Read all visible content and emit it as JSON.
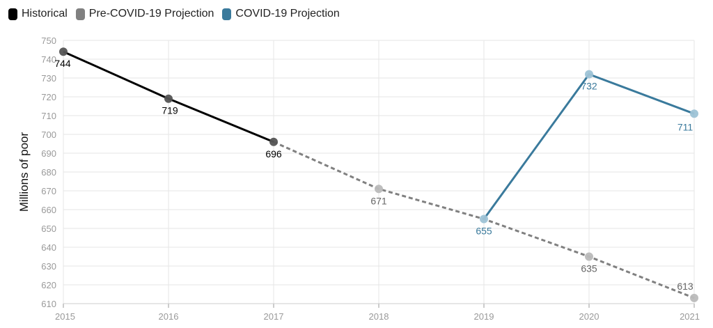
{
  "legend": [
    {
      "label": "Historical",
      "color": "#000000"
    },
    {
      "label": "Pre-COVID-19 Projection",
      "color": "#808080"
    },
    {
      "label": "COVID-19 Projection",
      "color": "#3a7a9c"
    }
  ],
  "chart_data": {
    "type": "line",
    "ylabel": "Millions of poor",
    "xlabel": "",
    "ylim": [
      610,
      750
    ],
    "y_ticks": [
      610,
      620,
      630,
      640,
      650,
      660,
      670,
      680,
      690,
      700,
      710,
      720,
      730,
      740,
      750
    ],
    "x_ticks": [
      2015,
      2016,
      2017,
      2018,
      2019,
      2020,
      2021
    ],
    "grid": true,
    "legend_position": "top-left",
    "series": [
      {
        "name": "Historical",
        "color": "#000000",
        "marker_color": "#555555",
        "dashed": false,
        "x": [
          2015,
          2016,
          2017
        ],
        "values": [
          744,
          719,
          696
        ],
        "label_color": "#000000"
      },
      {
        "name": "Pre-COVID-19 Projection",
        "color": "#808080",
        "marker_color": "#bbbbbb",
        "dashed": true,
        "x": [
          2017,
          2018,
          2019,
          2020,
          2021
        ],
        "values": [
          696,
          671,
          655,
          635,
          613
        ],
        "label_color": "#666666",
        "label_points": [
          2018,
          2020,
          2021
        ]
      },
      {
        "name": "COVID-19 Projection",
        "color": "#3a7a9c",
        "marker_color": "#9fc3d6",
        "dashed": false,
        "x": [
          2019,
          2020,
          2021
        ],
        "values": [
          655,
          732,
          711
        ],
        "label_color": "#3a7a9c"
      }
    ]
  }
}
